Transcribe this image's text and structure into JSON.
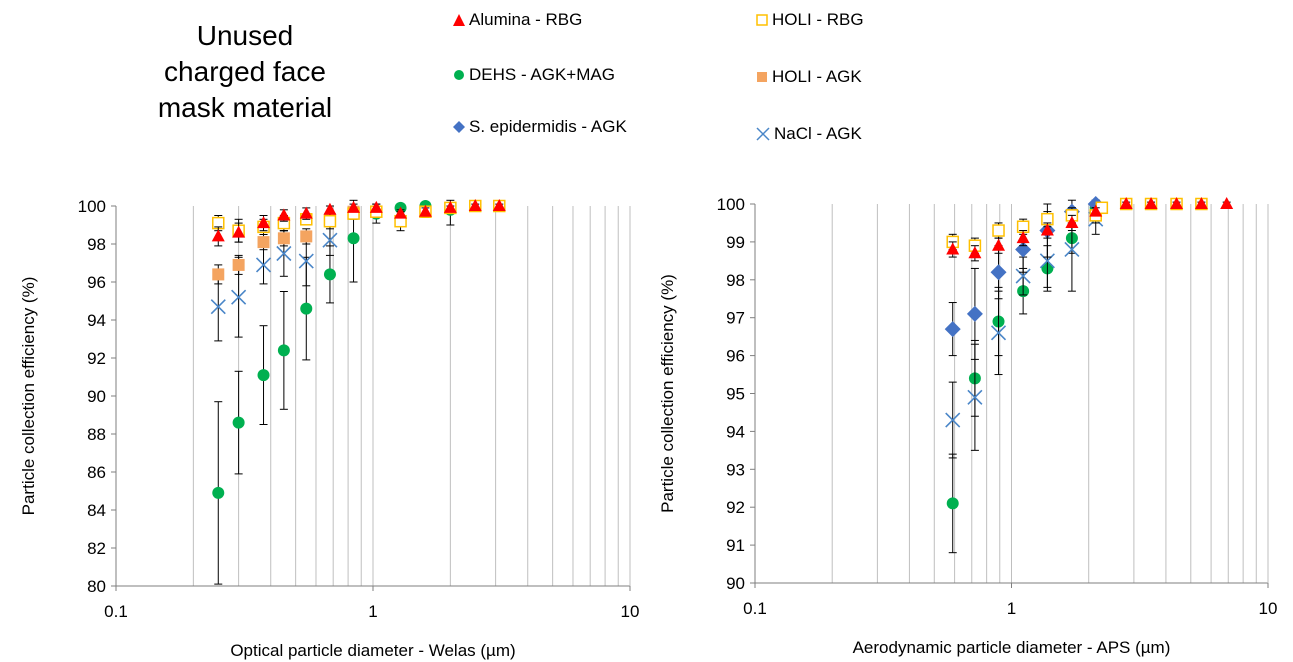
{
  "figure_title": [
    "Unused",
    "charged face",
    "mask material"
  ],
  "legend": [
    {
      "label": "Alumina - RBG",
      "marker": "triangle",
      "color": "#ff0000"
    },
    {
      "label": "HOLI - RBG",
      "marker": "open-square",
      "color": "#ffc000"
    },
    {
      "label": "DEHS - AGK+MAG",
      "marker": "circle",
      "color": "#00b050"
    },
    {
      "label": "HOLI - AGK",
      "marker": "square",
      "color": "#f4a460"
    },
    {
      "label": "S. epidermidis - AGK",
      "marker": "diamond",
      "color": "#4472c4"
    },
    {
      "label": "NaCl - AGK",
      "marker": "x",
      "color": "#4a86c8"
    }
  ],
  "chart_data": [
    {
      "type": "scatter",
      "xlabel": "Optical particle diameter - Welas (µm)",
      "ylabel": "Particle collection efficiency (%)",
      "xscale": "log",
      "xlim": [
        0.1,
        10
      ],
      "ylim": [
        80,
        100
      ],
      "xticks": [
        "0.1",
        "1",
        "10"
      ],
      "yticks": [
        "80",
        "82",
        "84",
        "86",
        "88",
        "90",
        "92",
        "94",
        "96",
        "98",
        "100"
      ],
      "grid": "vertical log gridlines",
      "series": [
        {
          "name": "Alumina - RBG",
          "x": [
            0.25,
            0.3,
            0.375,
            0.45,
            0.55,
            0.68,
            0.84,
            1.03,
            1.28,
            1.6,
            2.0,
            2.5,
            3.1
          ],
          "y": [
            98.4,
            98.6,
            99.1,
            99.5,
            99.6,
            99.8,
            99.9,
            99.9,
            99.6,
            99.7,
            99.9,
            100,
            100
          ],
          "err": [
            0.5,
            0.5,
            0.4,
            0.3,
            0.3,
            0.2,
            0.2,
            0.2,
            0.2,
            0.2,
            0.1,
            0.1,
            0.1
          ]
        },
        {
          "name": "HOLI - RBG",
          "x": [
            0.25,
            0.3,
            0.375,
            0.45,
            0.55,
            0.68,
            0.84,
            1.03,
            1.28,
            1.6,
            2.0,
            2.5,
            3.1
          ],
          "y": [
            99.1,
            98.7,
            98.9,
            99.1,
            99.3,
            99.2,
            99.6,
            99.7,
            99.2,
            99.7,
            99.9,
            100,
            100
          ],
          "err": [
            0.4,
            0.6,
            0.4,
            0.4,
            0.3,
            0.4,
            0.3,
            0.3,
            0.5,
            0.3,
            0.2,
            0.1,
            0.1
          ]
        },
        {
          "name": "DEHS - AGK+MAG",
          "x": [
            0.25,
            0.3,
            0.375,
            0.45,
            0.55,
            0.68,
            0.84,
            1.03,
            1.28,
            1.6,
            2.0
          ],
          "y": [
            84.9,
            88.6,
            91.1,
            92.4,
            94.6,
            96.4,
            98.3,
            99.6,
            99.9,
            100,
            99.8
          ],
          "err": [
            4.8,
            2.7,
            2.6,
            3.1,
            2.7,
            1.5,
            2.3,
            0.5,
            0.2,
            0.1,
            0.8
          ]
        },
        {
          "name": "HOLI - AGK",
          "x": [
            0.25,
            0.3,
            0.375,
            0.45,
            0.55,
            0.68,
            0.84
          ],
          "y": [
            96.4,
            96.9,
            98.1,
            98.3,
            98.4,
            99.3,
            99.7
          ],
          "err": [
            0.5,
            0.5,
            0.4,
            0.4,
            0.4,
            0.3,
            0.2
          ]
        },
        {
          "name": "NaCl - AGK",
          "x": [
            0.25,
            0.3,
            0.375,
            0.45,
            0.55,
            0.68
          ],
          "y": [
            94.7,
            95.2,
            96.9,
            97.5,
            97.1,
            98.2
          ],
          "err": [
            1.8,
            2.1,
            1.0,
            1.2,
            1.3,
            0.8
          ]
        }
      ]
    },
    {
      "type": "scatter",
      "xlabel": "Aerodynamic particle diameter - APS (µm)",
      "ylabel": "Particle collection efficiency (%)",
      "xscale": "log",
      "xlim": [
        0.1,
        10
      ],
      "ylim": [
        90,
        100
      ],
      "xticks": [
        "0.1",
        "1",
        "10"
      ],
      "yticks": [
        "90",
        "91",
        "92",
        "93",
        "94",
        "95",
        "96",
        "97",
        "98",
        "99",
        "100"
      ],
      "grid": "vertical log gridlines",
      "series": [
        {
          "name": "Alumina - RBG",
          "x": [
            0.59,
            0.72,
            0.89,
            1.11,
            1.38,
            1.72,
            2.13,
            2.8,
            3.5,
            4.4,
            5.5,
            6.9
          ],
          "y": [
            98.8,
            98.7,
            98.9,
            99.1,
            99.3,
            99.5,
            99.8,
            100,
            100,
            100,
            100,
            100
          ],
          "err": [
            0.2,
            0.2,
            0.2,
            0.2,
            0.2,
            0.2,
            0.1,
            0.05,
            0.05,
            0.05,
            0.05,
            0.05
          ]
        },
        {
          "name": "HOLI - RBG",
          "x": [
            0.59,
            0.72,
            0.89,
            1.11,
            1.38,
            1.72,
            2.13,
            2.25,
            2.8,
            3.5,
            4.4,
            5.5
          ],
          "y": [
            99.0,
            98.9,
            99.3,
            99.4,
            99.6,
            99.7,
            99.7,
            99.9,
            100,
            100,
            100,
            100
          ],
          "err": [
            0.2,
            0.2,
            0.2,
            0.2,
            0.2,
            0.2,
            0.2,
            0.1,
            0.05,
            0.05,
            0.05,
            0.05
          ]
        },
        {
          "name": "DEHS - AGK+MAG",
          "x": [
            0.59,
            0.72,
            0.89,
            1.11,
            1.38,
            1.72,
            2.13
          ],
          "y": [
            92.1,
            95.4,
            96.9,
            97.7,
            98.3,
            99.1,
            99.9
          ],
          "err": [
            1.3,
            1.0,
            0.9,
            0.6,
            0.6,
            0.4,
            0.2
          ]
        },
        {
          "name": "S. epidermidis - AGK",
          "x": [
            0.59,
            0.72,
            0.89,
            1.11,
            1.38,
            1.72,
            2.13
          ],
          "y": [
            96.7,
            97.1,
            98.2,
            98.8,
            99.3,
            99.8,
            100
          ],
          "err": [
            0.7,
            1.2,
            0.7,
            0.6,
            0.7,
            0.3,
            0.1
          ]
        },
        {
          "name": "NaCl - AGK",
          "x": [
            0.59,
            0.72,
            0.89,
            1.11,
            1.38,
            1.72,
            2.13
          ],
          "y": [
            94.3,
            94.9,
            96.6,
            98.1,
            98.5,
            98.8,
            99.6
          ],
          "err": [
            1.0,
            1.4,
            1.1,
            0.5,
            0.7,
            1.1,
            0.4
          ]
        }
      ]
    }
  ]
}
